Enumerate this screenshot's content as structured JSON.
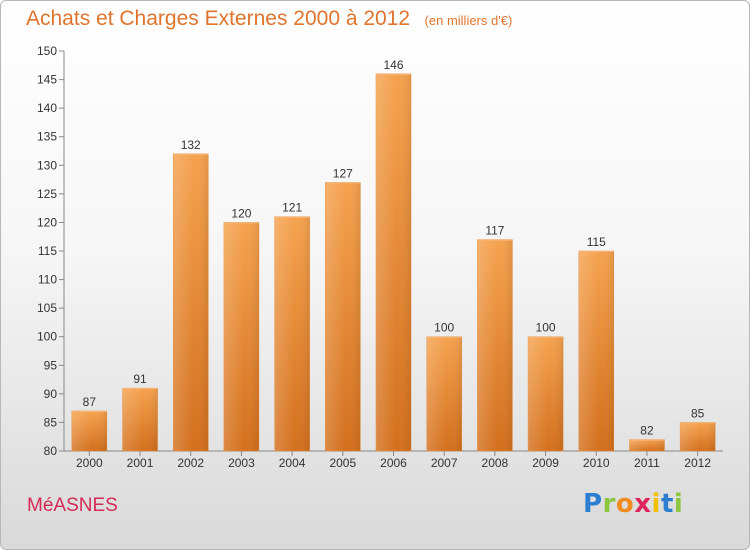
{
  "header": {
    "title": "Achats et Charges Externes 2000 à 2012",
    "subtitle": "(en milliers d'€)"
  },
  "footer": {
    "place": "MéASNES",
    "logo_letters": [
      "P",
      "r",
      "o",
      "x",
      "i",
      "t",
      "i"
    ],
    "logo_colors": [
      "#2c7fd0",
      "#8cc63f",
      "#f08b1e",
      "#e0245e",
      "#f5c000",
      "#2c7fd0",
      "#8cc63f"
    ]
  },
  "chart_data": {
    "type": "bar",
    "title": "Achats et Charges Externes 2000 à 2012",
    "subtitle": "(en milliers d'€)",
    "categories": [
      "2000",
      "2001",
      "2002",
      "2003",
      "2004",
      "2005",
      "2006",
      "2007",
      "2008",
      "2009",
      "2010",
      "2011",
      "2012"
    ],
    "values": [
      87,
      91,
      132,
      120,
      121,
      127,
      146,
      100,
      117,
      100,
      115,
      82,
      85
    ],
    "data_labels": [
      "87",
      "91",
      "132",
      "120",
      "121",
      "127",
      "146",
      "100",
      "117",
      "100",
      "115",
      "82",
      "85"
    ],
    "ylim": [
      80,
      150
    ],
    "yticks": [
      80,
      85,
      90,
      95,
      100,
      105,
      110,
      115,
      120,
      125,
      130,
      135,
      140,
      145,
      150
    ],
    "grid": false,
    "bar_color": "#f0923a",
    "bar_color_dark": "#d9741d"
  }
}
